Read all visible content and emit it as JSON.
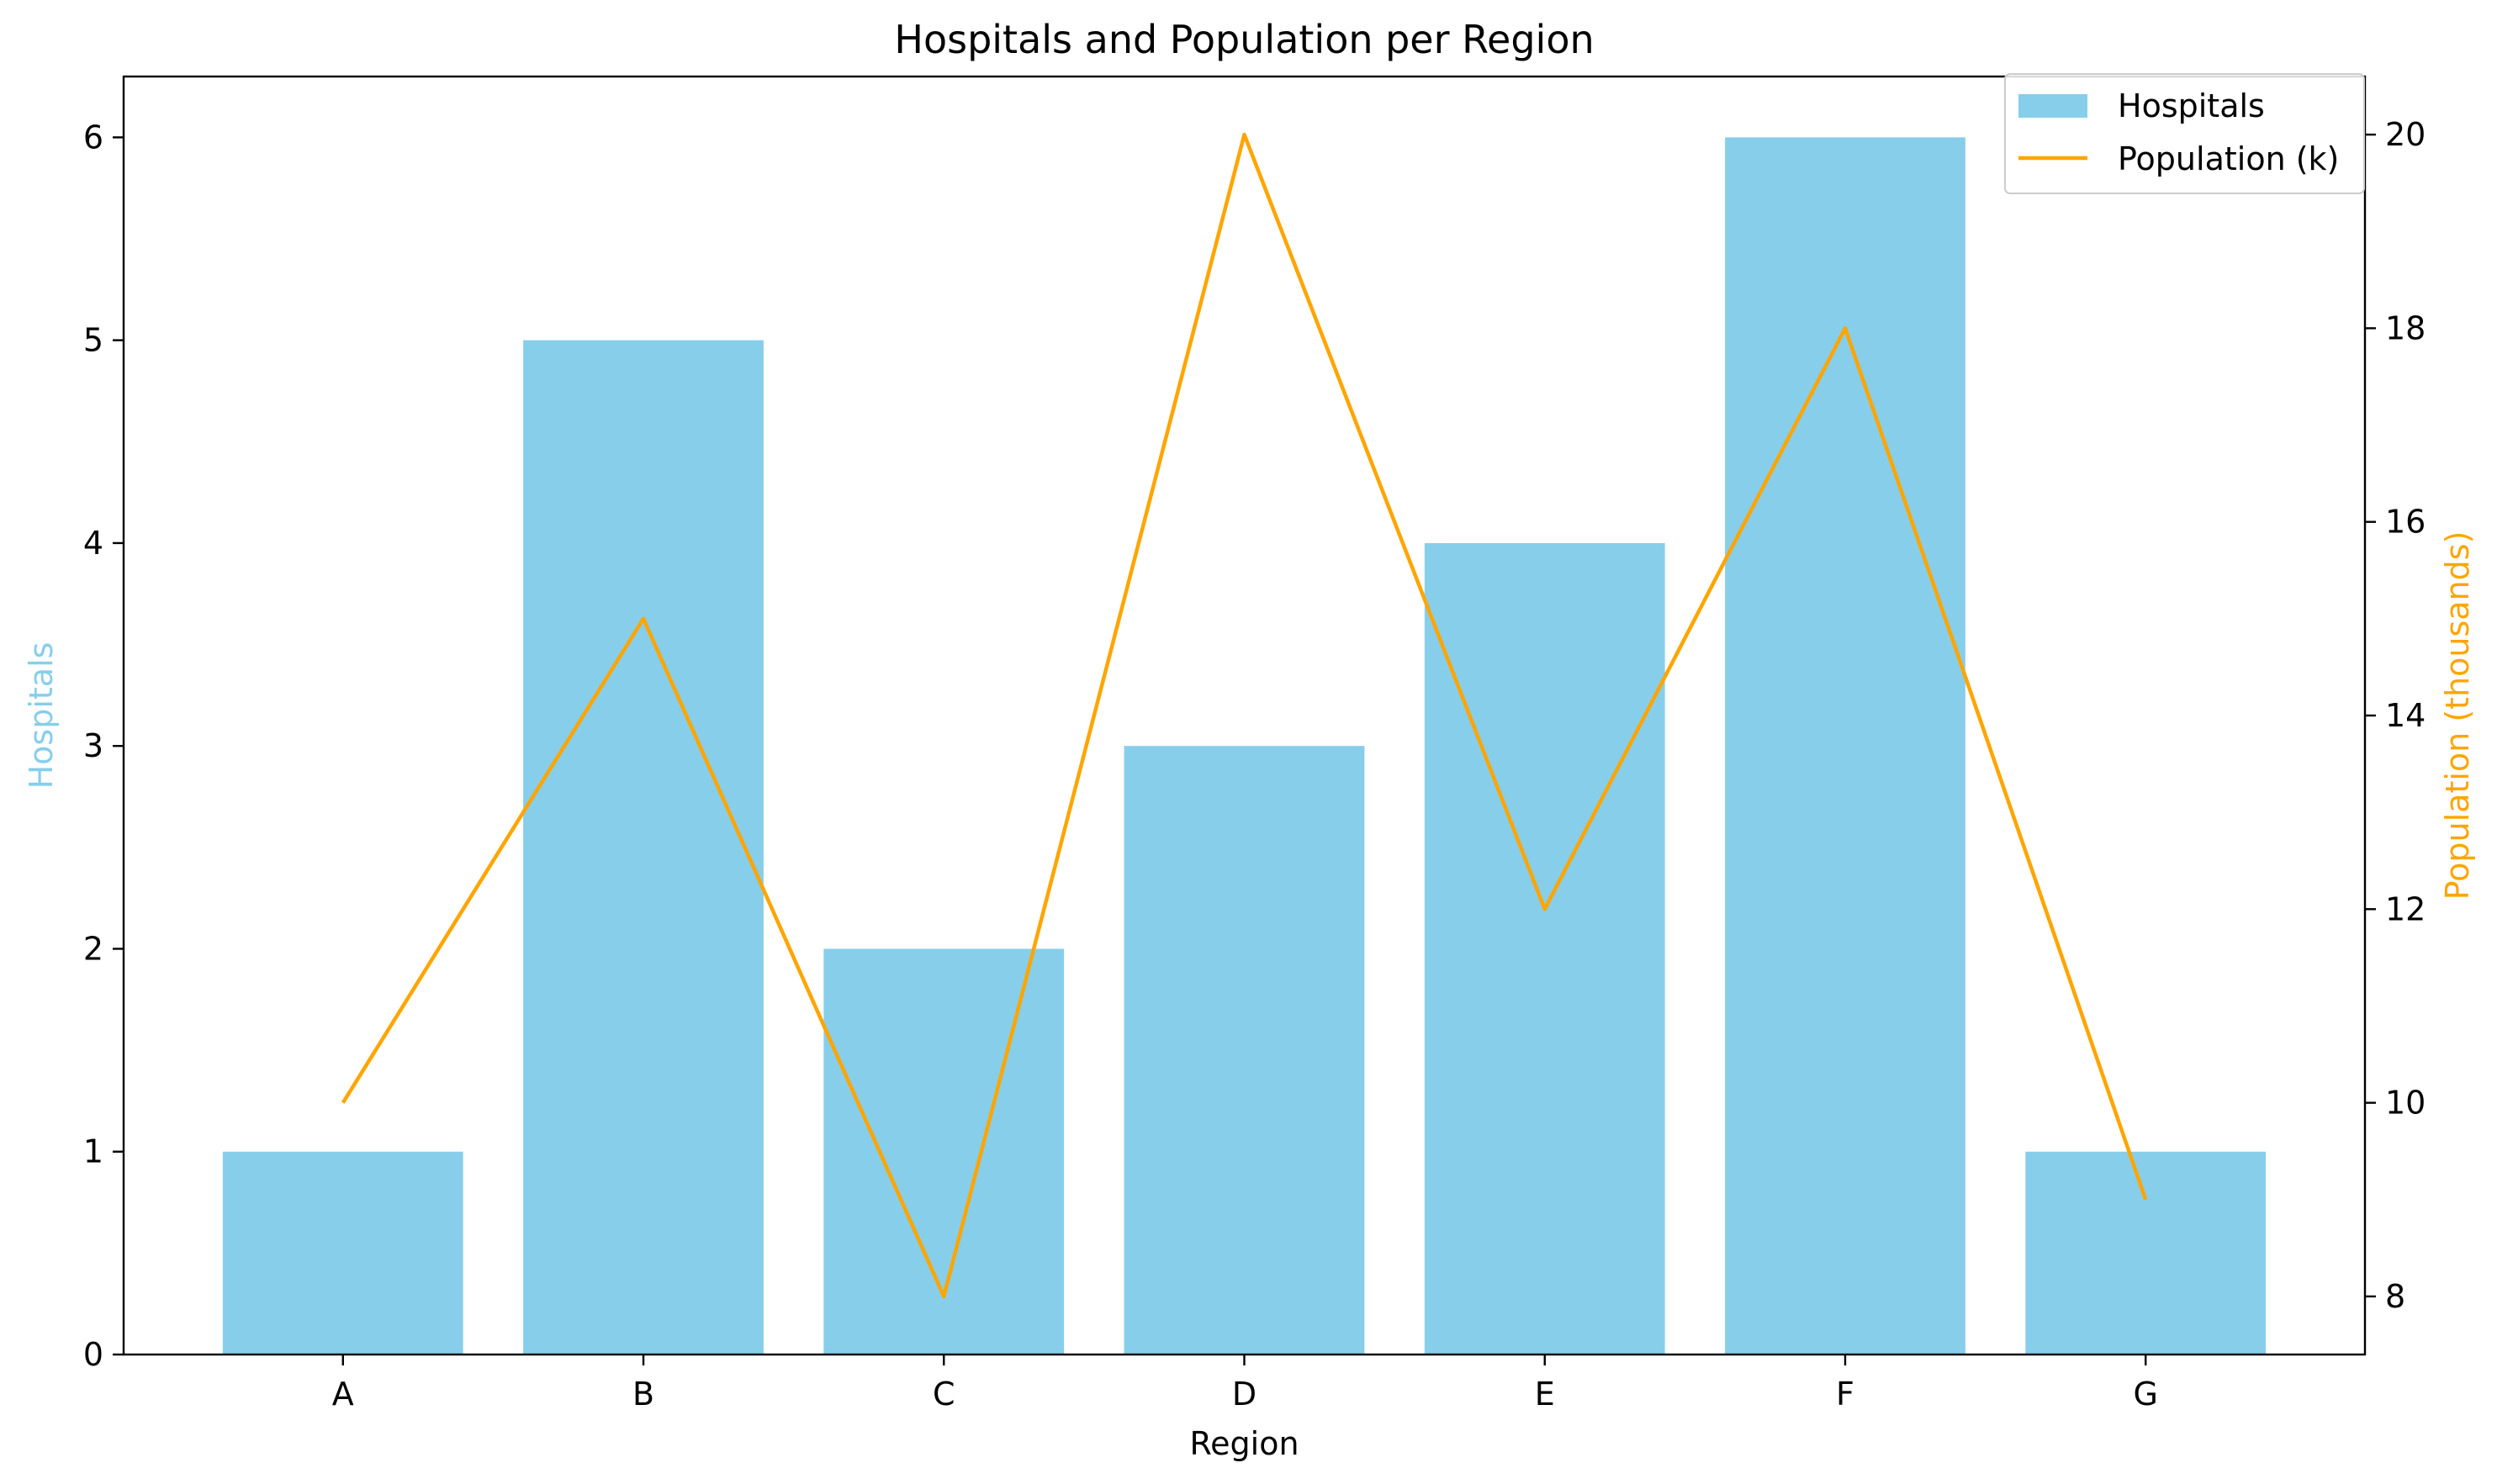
{
  "chart_data": {
    "type": "bar",
    "title": "Hospitals and Population per Region",
    "xlabel": "Region",
    "ylabel": "Hospitals",
    "y2label": "Population (thousands)",
    "categories": [
      "A",
      "B",
      "C",
      "D",
      "E",
      "F",
      "G"
    ],
    "series": [
      {
        "name": "Hospitals",
        "type": "bar",
        "axis": "left",
        "color": "#87CEEB",
        "values": [
          1,
          5,
          2,
          3,
          4,
          6,
          1
        ]
      },
      {
        "name": "Population (k)",
        "type": "line",
        "axis": "right",
        "color": "#FFA500",
        "values": [
          10,
          15,
          8,
          20,
          12,
          18,
          9
        ]
      }
    ],
    "ylim": [
      0,
      6.3
    ],
    "y2lim": [
      7.4,
      20.6
    ],
    "yticks": [
      0,
      1,
      2,
      3,
      4,
      5,
      6
    ],
    "y2ticks": [
      8,
      10,
      12,
      14,
      16,
      18,
      20
    ],
    "ylabel_color": "#87CEEB",
    "y2label_color": "#FFA500",
    "legend_position": "upper-right",
    "grid": false
  }
}
